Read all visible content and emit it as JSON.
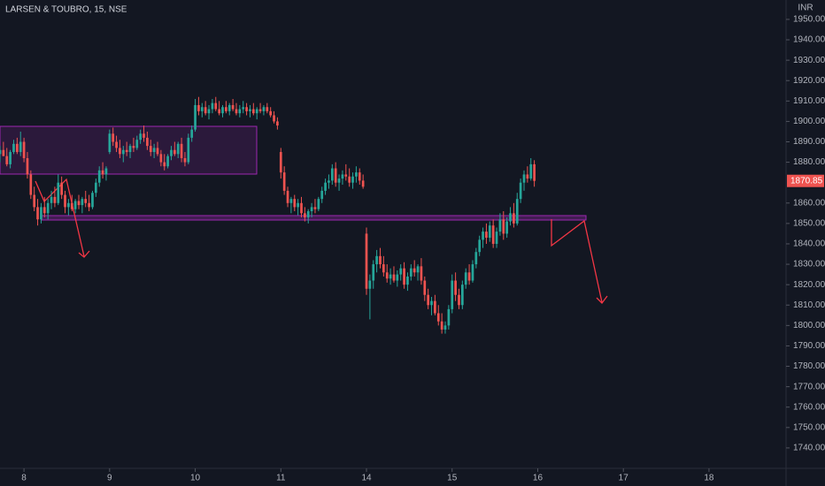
{
  "chart_data": {
    "type": "candlestick",
    "title": "LARSEN & TOUBRO, 15, NSE",
    "y_unit": "INR",
    "up_color": "#26a69a",
    "down_color": "#ef5350",
    "xlim": [
      0,
      229.5
    ],
    "ylim": [
      1730,
      1959.5
    ],
    "xticks": [
      {
        "value": 7,
        "label": "8"
      },
      {
        "value": 32,
        "label": "9"
      },
      {
        "value": 57,
        "label": "10"
      },
      {
        "value": 82,
        "label": "11"
      },
      {
        "value": 107,
        "label": "14"
      },
      {
        "value": 132,
        "label": "15"
      },
      {
        "value": 157,
        "label": "16"
      },
      {
        "value": 182,
        "label": "17"
      },
      {
        "value": 207,
        "label": "18"
      }
    ],
    "yticks": [
      {
        "value": 1950,
        "label": "1950.00"
      },
      {
        "value": 1940,
        "label": "1940.00"
      },
      {
        "value": 1930,
        "label": "1930.00"
      },
      {
        "value": 1920,
        "label": "1920.00"
      },
      {
        "value": 1910,
        "label": "1910.00"
      },
      {
        "value": 1900,
        "label": "1900.00"
      },
      {
        "value": 1890,
        "label": "1890.00"
      },
      {
        "value": 1880,
        "label": "1880.00"
      },
      {
        "value": 1860,
        "label": "1860.00"
      },
      {
        "value": 1850,
        "label": "1850.00"
      },
      {
        "value": 1840,
        "label": "1840.00"
      },
      {
        "value": 1830,
        "label": "1830.00"
      },
      {
        "value": 1820,
        "label": "1820.00"
      },
      {
        "value": 1810,
        "label": "1810.00"
      },
      {
        "value": 1800,
        "label": "1800.00"
      },
      {
        "value": 1790,
        "label": "1790.00"
      },
      {
        "value": 1780,
        "label": "1780.00"
      },
      {
        "value": 1770,
        "label": "1770.00"
      },
      {
        "value": 1760,
        "label": "1760.00"
      },
      {
        "value": 1750,
        "label": "1750.00"
      },
      {
        "value": 1740,
        "label": "1740.00"
      }
    ],
    "candles": [
      [
        1884,
        1888,
        1880,
        1886
      ],
      [
        1886,
        1890,
        1883,
        1883
      ],
      [
        1883,
        1887,
        1878,
        1879
      ],
      [
        1879,
        1886,
        1877,
        1885
      ],
      [
        1885,
        1891,
        1884,
        1889
      ],
      [
        1889,
        1892,
        1884,
        1885
      ],
      [
        1885,
        1895,
        1883,
        1890
      ],
      [
        1890,
        1892,
        1880,
        1882
      ],
      [
        1882,
        1885,
        1872,
        1874
      ],
      [
        1874,
        1876,
        1862,
        1864
      ],
      [
        1864,
        1868,
        1856,
        1858
      ],
      [
        1858,
        1862,
        1849,
        1852
      ],
      [
        1852,
        1860,
        1850,
        1858
      ],
      [
        1858,
        1863,
        1853,
        1855
      ],
      [
        1855,
        1862,
        1852,
        1860
      ],
      [
        1860,
        1866,
        1857,
        1863
      ],
      [
        1863,
        1868,
        1858,
        1860
      ],
      [
        1860,
        1874,
        1859,
        1870
      ],
      [
        1870,
        1873,
        1862,
        1864
      ],
      [
        1864,
        1866,
        1855,
        1858
      ],
      [
        1858,
        1862,
        1854,
        1860
      ],
      [
        1860,
        1864,
        1856,
        1857
      ],
      [
        1857,
        1862,
        1855,
        1861
      ],
      [
        1861,
        1864,
        1857,
        1859
      ],
      [
        1859,
        1863,
        1855,
        1862
      ],
      [
        1862,
        1866,
        1858,
        1860
      ],
      [
        1860,
        1864,
        1856,
        1858
      ],
      [
        1858,
        1866,
        1857,
        1865
      ],
      [
        1865,
        1872,
        1863,
        1870
      ],
      [
        1870,
        1878,
        1868,
        1876
      ],
      [
        1876,
        1880,
        1872,
        1874
      ],
      [
        1874,
        1878,
        1871,
        1877
      ],
      [
        1885,
        1896,
        1884,
        1894
      ],
      [
        1894,
        1897,
        1888,
        1890
      ],
      [
        1890,
        1893,
        1885,
        1887
      ],
      [
        1887,
        1891,
        1882,
        1884
      ],
      [
        1884,
        1888,
        1880,
        1886
      ],
      [
        1886,
        1890,
        1883,
        1885
      ],
      [
        1885,
        1889,
        1882,
        1888
      ],
      [
        1888,
        1892,
        1885,
        1887
      ],
      [
        1887,
        1893,
        1886,
        1891
      ],
      [
        1891,
        1896,
        1889,
        1894
      ],
      [
        1894,
        1898,
        1890,
        1892
      ],
      [
        1892,
        1895,
        1886,
        1888
      ],
      [
        1888,
        1891,
        1883,
        1885
      ],
      [
        1885,
        1889,
        1882,
        1887
      ],
      [
        1887,
        1890,
        1883,
        1884
      ],
      [
        1884,
        1886,
        1878,
        1880
      ],
      [
        1880,
        1884,
        1876,
        1878
      ],
      [
        1878,
        1884,
        1877,
        1883
      ],
      [
        1883,
        1888,
        1881,
        1886
      ],
      [
        1886,
        1890,
        1883,
        1884
      ],
      [
        1884,
        1890,
        1882,
        1889
      ],
      [
        1889,
        1892,
        1880,
        1882
      ],
      [
        1882,
        1885,
        1878,
        1880
      ],
      [
        1880,
        1894,
        1879,
        1892
      ],
      [
        1892,
        1898,
        1890,
        1896
      ],
      [
        1896,
        1911,
        1895,
        1908
      ],
      [
        1908,
        1912,
        1903,
        1905
      ],
      [
        1905,
        1909,
        1902,
        1907
      ],
      [
        1907,
        1910,
        1903,
        1904
      ],
      [
        1904,
        1908,
        1901,
        1906
      ],
      [
        1906,
        1911,
        1904,
        1909
      ],
      [
        1909,
        1912,
        1905,
        1906
      ],
      [
        1906,
        1910,
        1903,
        1904
      ],
      [
        1904,
        1908,
        1902,
        1907
      ],
      [
        1907,
        1910,
        1904,
        1905
      ],
      [
        1905,
        1909,
        1903,
        1908
      ],
      [
        1908,
        1911,
        1905,
        1906
      ],
      [
        1906,
        1909,
        1903,
        1904
      ],
      [
        1904,
        1908,
        1902,
        1906
      ],
      [
        1906,
        1910,
        1904,
        1907
      ],
      [
        1907,
        1909,
        1903,
        1905
      ],
      [
        1905,
        1908,
        1902,
        1906
      ],
      [
        1906,
        1909,
        1903,
        1904
      ],
      [
        1904,
        1907,
        1901,
        1906
      ],
      [
        1906,
        1909,
        1904,
        1905
      ],
      [
        1905,
        1908,
        1903,
        1907
      ],
      [
        1907,
        1909,
        1904,
        1905
      ],
      [
        1905,
        1907,
        1902,
        1903
      ],
      [
        1903,
        1905,
        1899,
        1900
      ],
      [
        1900,
        1902,
        1896,
        1898
      ],
      [
        1885,
        1887,
        1872,
        1875
      ],
      [
        1875,
        1878,
        1864,
        1866
      ],
      [
        1866,
        1868,
        1858,
        1860
      ],
      [
        1860,
        1863,
        1855,
        1862
      ],
      [
        1862,
        1864,
        1856,
        1858
      ],
      [
        1858,
        1862,
        1854,
        1860
      ],
      [
        1860,
        1863,
        1853,
        1855
      ],
      [
        1855,
        1858,
        1851,
        1853
      ],
      [
        1853,
        1857,
        1850,
        1856
      ],
      [
        1856,
        1860,
        1853,
        1858
      ],
      [
        1858,
        1862,
        1855,
        1857
      ],
      [
        1857,
        1863,
        1856,
        1862
      ],
      [
        1862,
        1868,
        1860,
        1866
      ],
      [
        1866,
        1872,
        1864,
        1870
      ],
      [
        1870,
        1874,
        1867,
        1871
      ],
      [
        1871,
        1879,
        1869,
        1877
      ],
      [
        1877,
        1880,
        1868,
        1870
      ],
      [
        1870,
        1874,
        1866,
        1872
      ],
      [
        1872,
        1876,
        1869,
        1874
      ],
      [
        1874,
        1879,
        1871,
        1873
      ],
      [
        1873,
        1877,
        1868,
        1870
      ],
      [
        1870,
        1875,
        1867,
        1873
      ],
      [
        1873,
        1878,
        1870,
        1875
      ],
      [
        1875,
        1877,
        1869,
        1871
      ],
      [
        1871,
        1874,
        1867,
        1868
      ],
      [
        1845,
        1848,
        1815,
        1818
      ],
      [
        1818,
        1825,
        1803,
        1822
      ],
      [
        1822,
        1832,
        1818,
        1830
      ],
      [
        1830,
        1837,
        1826,
        1834
      ],
      [
        1834,
        1838,
        1828,
        1830
      ],
      [
        1830,
        1834,
        1824,
        1826
      ],
      [
        1826,
        1830,
        1821,
        1823
      ],
      [
        1823,
        1828,
        1820,
        1825
      ],
      [
        1825,
        1829,
        1821,
        1822
      ],
      [
        1822,
        1827,
        1819,
        1825
      ],
      [
        1825,
        1830,
        1822,
        1828
      ],
      [
        1828,
        1831,
        1818,
        1820
      ],
      [
        1820,
        1826,
        1817,
        1824
      ],
      [
        1824,
        1830,
        1822,
        1828
      ],
      [
        1828,
        1832,
        1824,
        1826
      ],
      [
        1826,
        1830,
        1822,
        1829
      ],
      [
        1829,
        1833,
        1820,
        1822
      ],
      [
        1822,
        1824,
        1812,
        1815
      ],
      [
        1815,
        1818,
        1808,
        1810
      ],
      [
        1810,
        1814,
        1805,
        1812
      ],
      [
        1812,
        1815,
        1805,
        1806
      ],
      [
        1806,
        1810,
        1800,
        1802
      ],
      [
        1802,
        1806,
        1796,
        1798
      ],
      [
        1798,
        1802,
        1796,
        1800
      ],
      [
        1800,
        1810,
        1798,
        1808
      ],
      [
        1808,
        1825,
        1806,
        1822
      ],
      [
        1822,
        1826,
        1812,
        1815
      ],
      [
        1815,
        1818,
        1808,
        1810
      ],
      [
        1810,
        1822,
        1808,
        1820
      ],
      [
        1820,
        1828,
        1818,
        1826
      ],
      [
        1826,
        1830,
        1820,
        1822
      ],
      [
        1822,
        1832,
        1821,
        1830
      ],
      [
        1830,
        1838,
        1828,
        1836
      ],
      [
        1836,
        1844,
        1834,
        1842
      ],
      [
        1842,
        1848,
        1838,
        1846
      ],
      [
        1846,
        1850,
        1840,
        1843
      ],
      [
        1843,
        1851,
        1841,
        1849
      ],
      [
        1849,
        1852,
        1838,
        1840
      ],
      [
        1840,
        1848,
        1838,
        1846
      ],
      [
        1846,
        1855,
        1844,
        1852
      ],
      [
        1852,
        1856,
        1842,
        1845
      ],
      [
        1845,
        1853,
        1843,
        1851
      ],
      [
        1851,
        1858,
        1849,
        1855
      ],
      [
        1855,
        1860,
        1848,
        1850
      ],
      [
        1850,
        1865,
        1849,
        1862
      ],
      [
        1862,
        1872,
        1860,
        1870
      ],
      [
        1870,
        1876,
        1866,
        1874
      ],
      [
        1874,
        1878,
        1870,
        1872
      ],
      [
        1872,
        1882,
        1871,
        1879
      ],
      [
        1879,
        1881,
        1868,
        1870.85
      ]
    ]
  }
}
